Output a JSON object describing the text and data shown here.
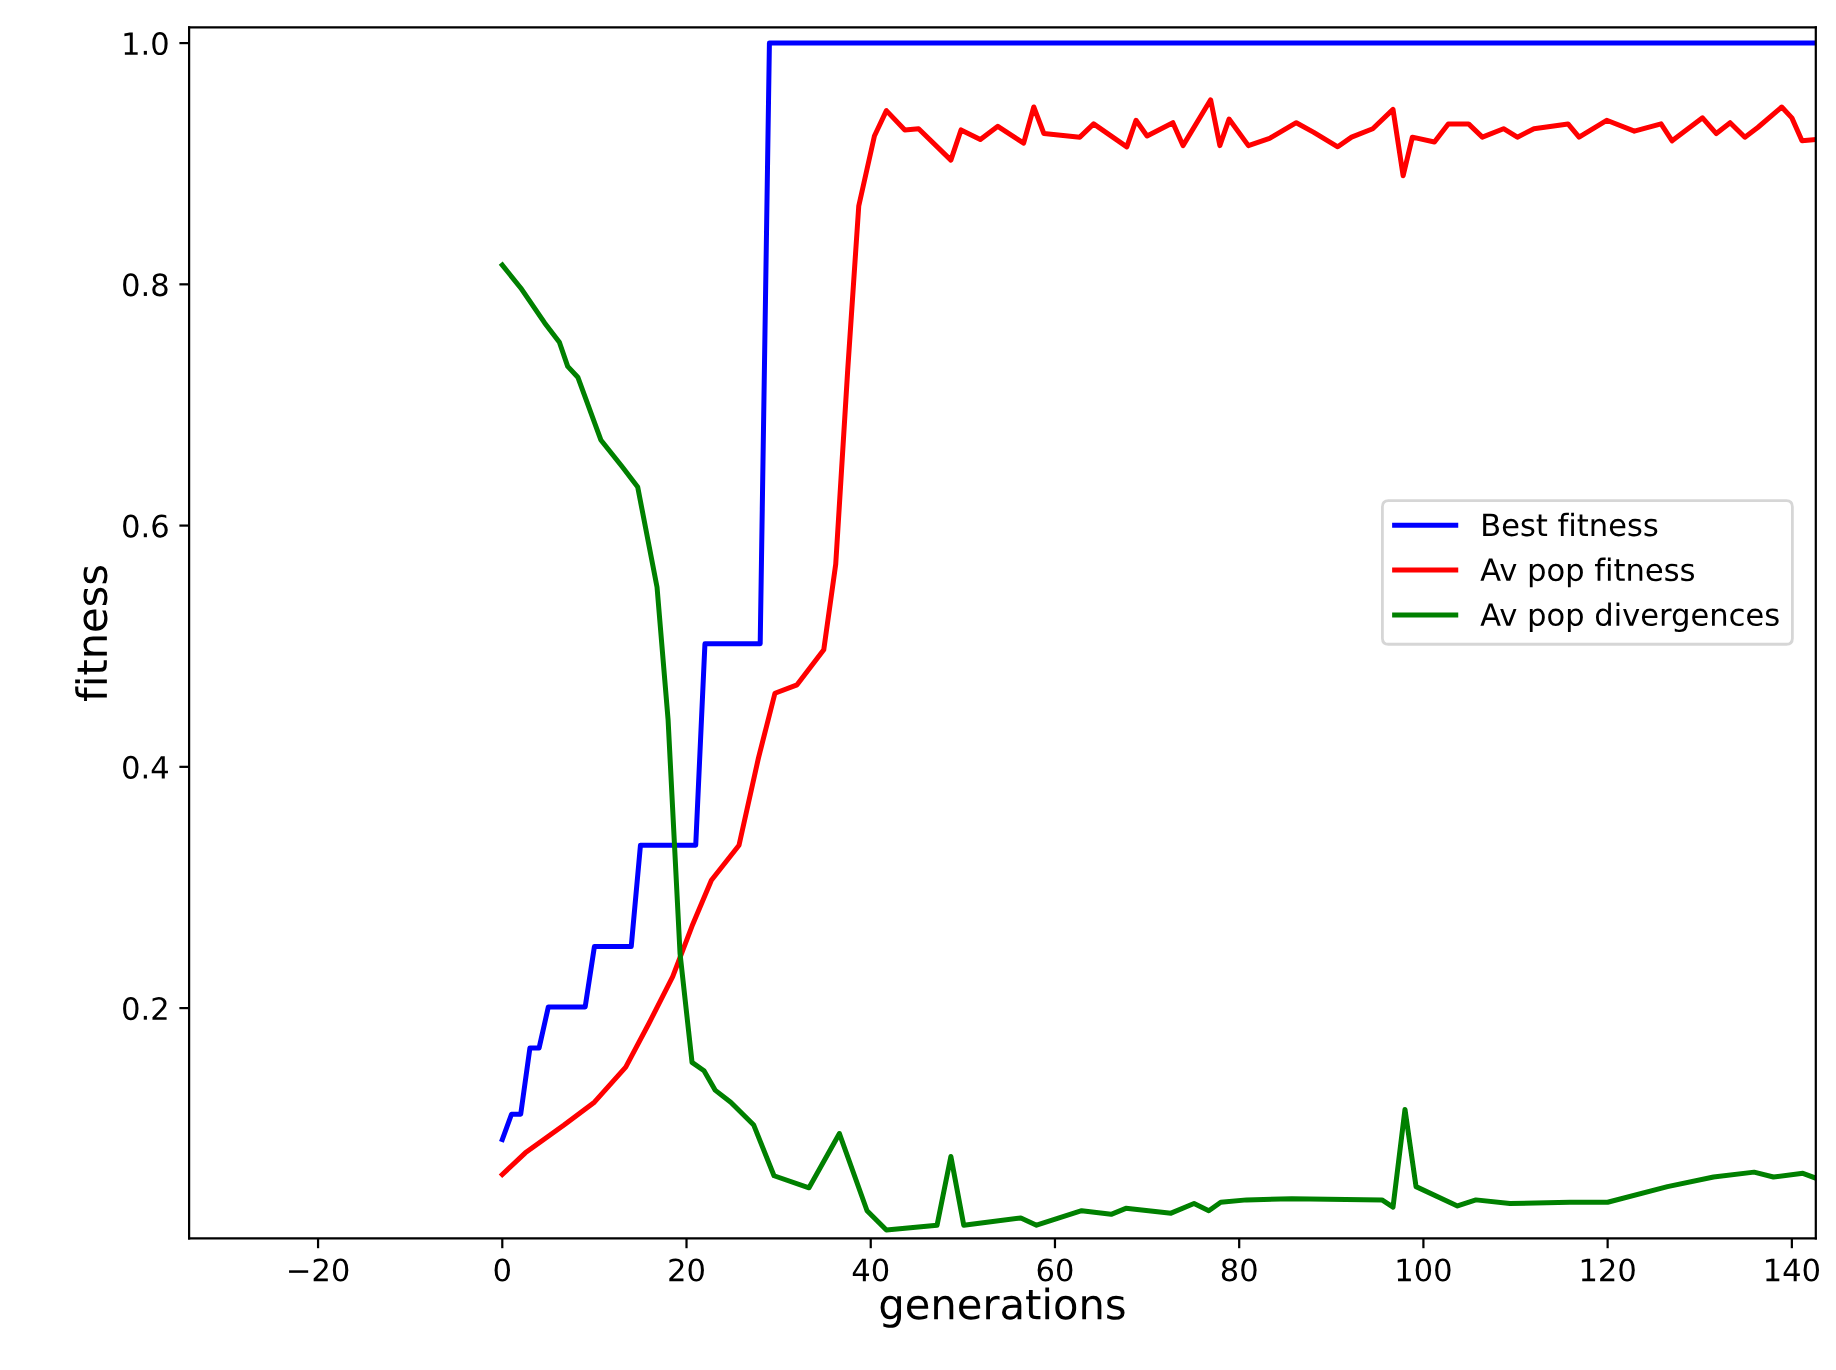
{
  "chart_data": {
    "type": "line",
    "xlabel": "generations",
    "ylabel": "fitness",
    "xlim": [
      -34,
      142.6
    ],
    "ylim": [
      0.009,
      1.013
    ],
    "xticks": [
      {
        "value": -20,
        "label": "−20"
      },
      0,
      20,
      40,
      60,
      80,
      100,
      120,
      140
    ],
    "yticks": [
      0.2,
      0.4,
      0.6,
      0.8,
      {
        "value": 1,
        "label": "1.0"
      }
    ],
    "grid": false,
    "legend": "right",
    "marker": "none",
    "line_style": "solid",
    "series": [
      {
        "name": "Best fitness",
        "color": "#0000ff",
        "x": [
          0,
          1,
          2,
          3,
          4,
          5,
          9,
          10,
          14,
          15,
          21,
          22,
          28,
          29,
          142.6
        ],
        "values": [
          0.091,
          0.112,
          0.112,
          0.167,
          0.167,
          0.201,
          0.201,
          0.251,
          0.251,
          0.335,
          0.335,
          0.502,
          0.502,
          1.0,
          1.0
        ]
      },
      {
        "name": "Av pop fitness",
        "color": "#ff0000",
        "x": [
          0,
          2.5,
          6.7,
          10,
          13.4,
          15.9,
          18.5,
          20.6,
          22.7,
          25.7,
          27.8,
          29.6,
          32,
          34.9,
          36.2,
          37.5,
          38.7,
          40.4,
          41.7,
          43.7,
          45.2,
          48.7,
          49.8,
          51.9,
          53.8,
          56.6,
          57.7,
          58.8,
          62.7,
          64.2,
          67.8,
          68.8,
          70,
          72.8,
          73.9,
          76.9,
          77.9,
          78.9,
          81,
          83.3,
          86.2,
          88.1,
          90.7,
          92.2,
          94.5,
          96.7,
          97.8,
          98.8,
          101.2,
          102.7,
          104.9,
          106.4,
          108.7,
          110.2,
          112,
          115.7,
          116.9,
          119.9,
          122.9,
          125.8,
          127,
          130.3,
          131.8,
          133.3,
          134.9,
          136.3,
          138.9,
          140,
          141.1,
          142.6
        ],
        "values": [
          0.062,
          0.08,
          0.103,
          0.122,
          0.151,
          0.187,
          0.226,
          0.268,
          0.306,
          0.335,
          0.407,
          0.461,
          0.468,
          0.497,
          0.568,
          0.729,
          0.865,
          0.923,
          0.944,
          0.928,
          0.929,
          0.903,
          0.928,
          0.92,
          0.931,
          0.917,
          0.947,
          0.925,
          0.922,
          0.933,
          0.914,
          0.936,
          0.923,
          0.934,
          0.915,
          0.953,
          0.915,
          0.937,
          0.915,
          0.921,
          0.934,
          0.926,
          0.914,
          0.922,
          0.929,
          0.945,
          0.89,
          0.922,
          0.918,
          0.933,
          0.933,
          0.922,
          0.929,
          0.922,
          0.929,
          0.933,
          0.922,
          0.936,
          0.927,
          0.933,
          0.919,
          0.938,
          0.925,
          0.934,
          0.922,
          0.93,
          0.947,
          0.938,
          0.919,
          0.92
        ]
      },
      {
        "name": "Av pop divergences",
        "color": "#008000",
        "x": [
          0,
          2,
          4.6,
          6.2,
          7.1,
          8.2,
          10.7,
          13,
          14.7,
          16.8,
          18,
          19.3,
          20.6,
          21.9,
          23.1,
          24.8,
          27.3,
          29.5,
          33.3,
          36.6,
          39.6,
          41.7,
          47.2,
          48.7,
          50.1,
          52.2,
          56.3,
          58,
          62.9,
          66.1,
          67.7,
          72.6,
          75.1,
          76.7,
          78,
          80.8,
          85.7,
          95.5,
          96.7,
          98,
          99.2,
          103.7,
          105.7,
          109.4,
          115.9,
          120,
          126.5,
          131.5,
          135.9,
          138,
          141.2,
          142.6
        ],
        "values": [
          0.816,
          0.797,
          0.768,
          0.752,
          0.732,
          0.723,
          0.671,
          0.649,
          0.632,
          0.549,
          0.439,
          0.245,
          0.155,
          0.148,
          0.132,
          0.122,
          0.103,
          0.061,
          0.051,
          0.096,
          0.032,
          0.016,
          0.02,
          0.077,
          0.02,
          0.022,
          0.026,
          0.02,
          0.032,
          0.029,
          0.034,
          0.03,
          0.038,
          0.032,
          0.039,
          0.041,
          0.042,
          0.041,
          0.035,
          0.116,
          0.052,
          0.036,
          0.041,
          0.038,
          0.039,
          0.039,
          0.052,
          0.06,
          0.064,
          0.06,
          0.063,
          0.059
        ]
      }
    ]
  }
}
